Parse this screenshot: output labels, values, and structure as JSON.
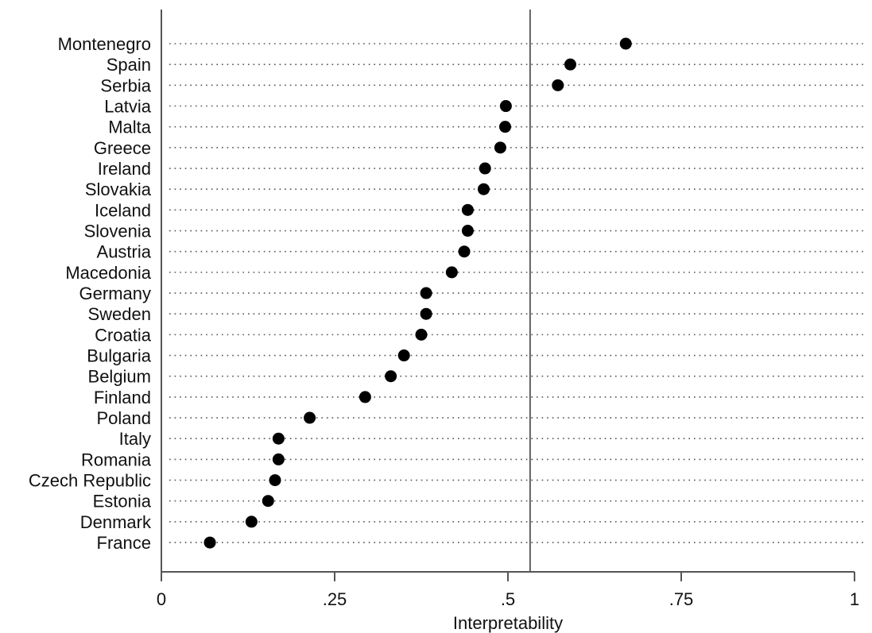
{
  "chart_data": {
    "type": "scatter",
    "xlabel": "Interpretability",
    "xlim": [
      0,
      1
    ],
    "xticks": [
      {
        "value": 0,
        "label": "0"
      },
      {
        "value": 0.25,
        "label": ".25"
      },
      {
        "value": 0.5,
        "label": ".5"
      },
      {
        "value": 0.75,
        "label": ".75"
      },
      {
        "value": 1,
        "label": "1"
      }
    ],
    "reference_line": 0.532,
    "grid": "dotted horizontal guides per category",
    "categories": [
      "Montenegro",
      "Spain",
      "Serbia",
      "Latvia",
      "Malta",
      "Greece",
      "Ireland",
      "Slovakia",
      "Iceland",
      "Slovenia",
      "Austria",
      "Macedonia",
      "Germany",
      "Sweden",
      "Croatia",
      "Bulgaria",
      "Belgium",
      "Finland",
      "Poland",
      "Italy",
      "Romania",
      "Czech Republic",
      "Estonia",
      "Denmark",
      "France"
    ],
    "values": [
      0.67,
      0.59,
      0.572,
      0.497,
      0.496,
      0.489,
      0.467,
      0.465,
      0.442,
      0.442,
      0.437,
      0.419,
      0.382,
      0.382,
      0.375,
      0.35,
      0.331,
      0.294,
      0.214,
      0.169,
      0.169,
      0.164,
      0.154,
      0.13,
      0.07
    ],
    "colors": {
      "marker": "#000000",
      "axis": "#555555"
    }
  }
}
